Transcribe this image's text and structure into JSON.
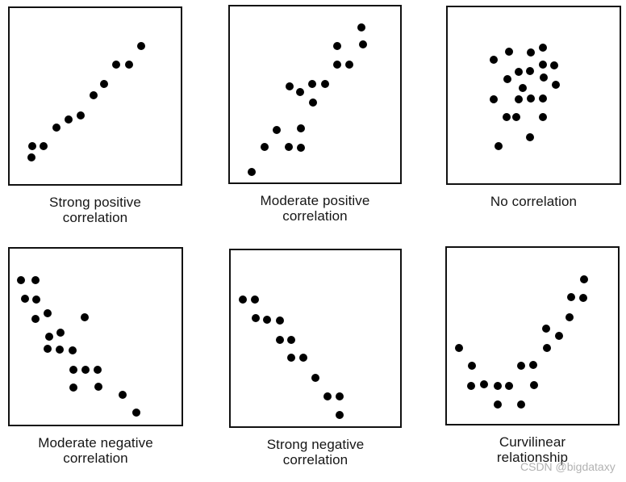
{
  "figure": {
    "background": "#ffffff",
    "box_border_color": "#111111",
    "dot_color": "#000000",
    "caption_color": "#161616"
  },
  "watermark": {
    "text": "CSDN @bigdataxy",
    "color": "#b2b2b2"
  },
  "chart_data": [
    {
      "type": "scatter",
      "title": "Strong positive correlation",
      "title_lines": [
        "Strong positive",
        "correlation"
      ],
      "axes": "hidden",
      "marker": "filled-circle",
      "marker_color": "#000000",
      "xlim": [
        0,
        1
      ],
      "ylim": [
        0,
        1
      ],
      "x": [
        0.126,
        0.131,
        0.2,
        0.272,
        0.344,
        0.417,
        0.489,
        0.551,
        0.624,
        0.696,
        0.767
      ],
      "y": [
        0.151,
        0.214,
        0.214,
        0.32,
        0.367,
        0.392,
        0.505,
        0.569,
        0.679,
        0.679,
        0.784
      ]
    },
    {
      "type": "scatter",
      "title": "Moderate positive correlation",
      "title_lines": [
        "Moderate positive",
        "correlation"
      ],
      "axes": "hidden",
      "marker": "filled-circle",
      "marker_color": "#000000",
      "xlim": [
        0,
        1
      ],
      "ylim": [
        0,
        1
      ],
      "x": [
        0.129,
        0.205,
        0.276,
        0.346,
        0.349,
        0.414,
        0.416,
        0.419,
        0.484,
        0.488,
        0.558,
        0.631,
        0.631,
        0.701,
        0.772,
        0.78
      ],
      "y": [
        0.058,
        0.2,
        0.299,
        0.2,
        0.548,
        0.516,
        0.196,
        0.309,
        0.559,
        0.452,
        0.559,
        0.776,
        0.668,
        0.668,
        0.883,
        0.783
      ]
    },
    {
      "type": "scatter",
      "title": "No correlation",
      "title_lines": [
        "No correlation"
      ],
      "axes": "hidden",
      "marker": "filled-circle",
      "marker_color": "#000000",
      "xlim": [
        0,
        1
      ],
      "ylim": [
        0,
        1
      ],
      "x": [
        0.554,
        0.357,
        0.485,
        0.266,
        0.554,
        0.62,
        0.411,
        0.48,
        0.346,
        0.557,
        0.628,
        0.438,
        0.266,
        0.411,
        0.485,
        0.554,
        0.342,
        0.397,
        0.554,
        0.48,
        0.295
      ],
      "y": [
        0.772,
        0.749,
        0.745,
        0.702,
        0.673,
        0.669,
        0.632,
        0.636,
        0.591,
        0.599,
        0.561,
        0.542,
        0.477,
        0.477,
        0.481,
        0.481,
        0.376,
        0.376,
        0.376,
        0.263,
        0.211
      ]
    },
    {
      "type": "scatter",
      "title": "Moderate negative correlation",
      "title_lines": [
        "Moderate negative",
        "correlation"
      ],
      "axes": "hidden",
      "marker": "filled-circle",
      "marker_color": "#000000",
      "xlim": [
        0,
        1
      ],
      "ylim": [
        0,
        1
      ],
      "x": [
        0.066,
        0.151,
        0.089,
        0.154,
        0.223,
        0.151,
        0.438,
        0.297,
        0.228,
        0.22,
        0.289,
        0.366,
        0.369,
        0.443,
        0.512,
        0.369,
        0.515,
        0.658,
        0.735
      ],
      "y": [
        0.82,
        0.82,
        0.716,
        0.711,
        0.634,
        0.599,
        0.611,
        0.524,
        0.499,
        0.431,
        0.427,
        0.424,
        0.312,
        0.312,
        0.312,
        0.21,
        0.214,
        0.172,
        0.068
      ]
    },
    {
      "type": "scatter",
      "title": "Strong negative correlation",
      "title_lines": [
        "Strong negative",
        "correlation"
      ],
      "axes": "hidden",
      "marker": "filled-circle",
      "marker_color": "#000000",
      "xlim": [
        0,
        1
      ],
      "ylim": [
        0,
        1
      ],
      "x": [
        0.071,
        0.145,
        0.148,
        0.215,
        0.289,
        0.289,
        0.358,
        0.358,
        0.429,
        0.499,
        0.573,
        0.645,
        0.645
      ],
      "y": [
        0.721,
        0.721,
        0.614,
        0.606,
        0.603,
        0.492,
        0.492,
        0.389,
        0.389,
        0.275,
        0.168,
        0.171,
        0.064
      ]
    },
    {
      "type": "scatter",
      "title": "Curvilinear relationship",
      "title_lines": [
        "Curvilinear",
        "relationship"
      ],
      "axes": "hidden",
      "marker": "filled-circle",
      "marker_color": "#000000",
      "xlim": [
        0,
        1
      ],
      "ylim": [
        0,
        1
      ],
      "x": [
        0.8,
        0.727,
        0.797,
        0.718,
        0.581,
        0.657,
        0.072,
        0.584,
        0.146,
        0.435,
        0.504,
        0.143,
        0.215,
        0.297,
        0.361,
        0.508,
        0.297,
        0.435
      ],
      "y": [
        0.823,
        0.718,
        0.715,
        0.607,
        0.543,
        0.498,
        0.43,
        0.43,
        0.328,
        0.328,
        0.333,
        0.216,
        0.223,
        0.216,
        0.216,
        0.22,
        0.111,
        0.111
      ]
    }
  ]
}
